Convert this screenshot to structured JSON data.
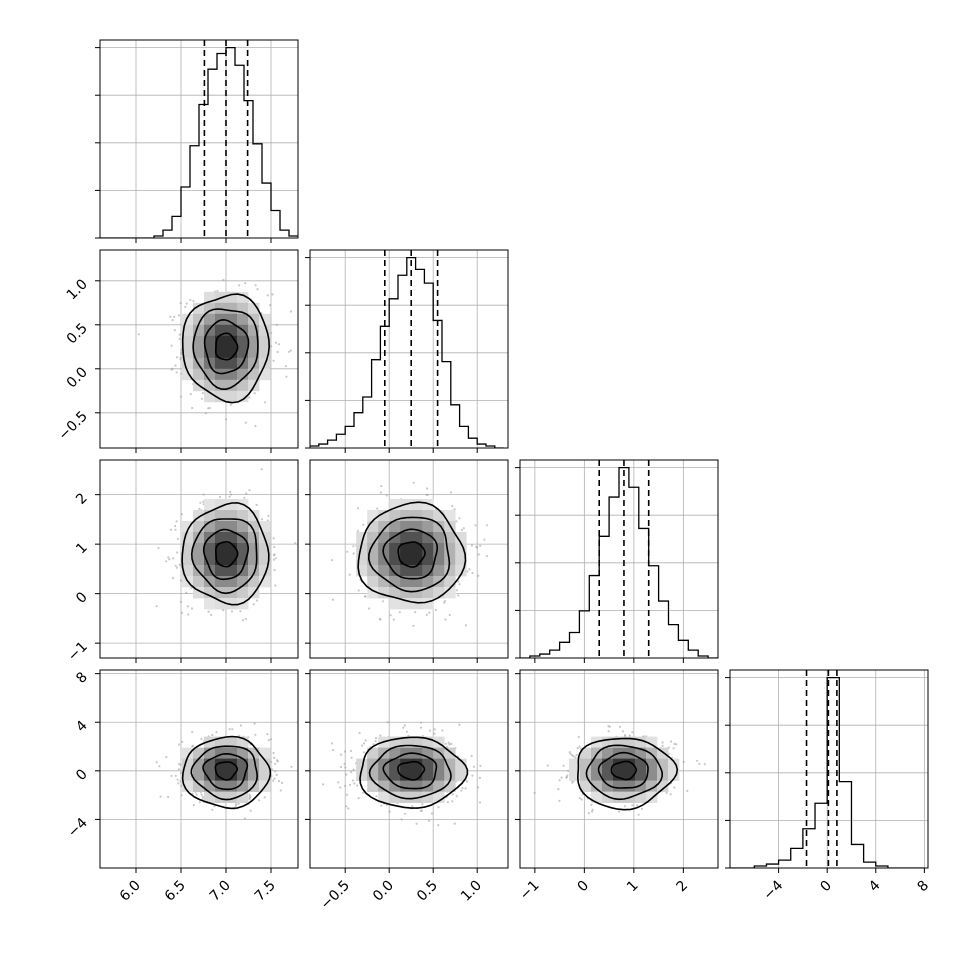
{
  "chart_data": {
    "type": "corner",
    "title": "",
    "parameters": [
      {
        "index": 0,
        "range": [
          5.6,
          7.8
        ],
        "ticks": [
          6.0,
          6.5,
          7.0,
          7.5
        ],
        "tick_labels": [
          "6.0",
          "6.5",
          "7.0",
          "7.5"
        ],
        "median": 7.0,
        "sigma": 0.24,
        "quantiles": [
          6.76,
          7.0,
          7.24
        ]
      },
      {
        "index": 1,
        "range": [
          -0.9,
          1.35
        ],
        "ticks": [
          -0.5,
          0.0,
          0.5,
          1.0
        ],
        "tick_labels": [
          "−0.5",
          "0.0",
          "0.5",
          "1.0"
        ],
        "median": 0.25,
        "sigma": 0.3,
        "quantiles": [
          -0.05,
          0.25,
          0.55
        ]
      },
      {
        "index": 2,
        "range": [
          -1.3,
          2.7
        ],
        "ticks": [
          -1,
          0,
          1,
          2
        ],
        "tick_labels": [
          "−1",
          "0",
          "1",
          "2"
        ],
        "median": 0.8,
        "sigma": 0.5,
        "quantiles": [
          0.3,
          0.8,
          1.3
        ]
      },
      {
        "index": 3,
        "range": [
          -8.0,
          8.3
        ],
        "ticks": [
          -4,
          0,
          4,
          8
        ],
        "tick_labels": [
          "−4",
          "0",
          "4",
          "8"
        ],
        "median": 0.1,
        "sigma": 1.3,
        "quantiles": [
          -1.7,
          0.1,
          0.8
        ]
      }
    ],
    "diagonal_histograms": [
      {
        "param": 0,
        "bin_edges": [
          5.6,
          5.7,
          5.8,
          5.9,
          6.0,
          6.1,
          6.2,
          6.3,
          6.4,
          6.5,
          6.6,
          6.7,
          6.8,
          6.9,
          7.0,
          7.1,
          7.2,
          7.3,
          7.4,
          7.5,
          7.6,
          7.7,
          7.8
        ],
        "counts": [
          0,
          0,
          0,
          0,
          0,
          0,
          1,
          4,
          11,
          26,
          47,
          68,
          86,
          94,
          97,
          88,
          70,
          48,
          28,
          14,
          4,
          1
        ]
      },
      {
        "param": 1,
        "bin_edges": [
          -0.9,
          -0.8,
          -0.7,
          -0.6,
          -0.5,
          -0.4,
          -0.3,
          -0.2,
          -0.1,
          0.0,
          0.1,
          0.2,
          0.3,
          0.4,
          0.5,
          0.6,
          0.7,
          0.8,
          0.9,
          1.0,
          1.1,
          1.2,
          1.3
        ],
        "counts": [
          1,
          2,
          4,
          7,
          11,
          18,
          26,
          45,
          62,
          76,
          88,
          97,
          91,
          84,
          65,
          44,
          22,
          11,
          5,
          2,
          1,
          0
        ]
      },
      {
        "param": 2,
        "bin_edges": [
          -1.3,
          -1.1,
          -0.9,
          -0.7,
          -0.5,
          -0.3,
          -0.1,
          0.1,
          0.3,
          0.5,
          0.7,
          0.9,
          1.1,
          1.3,
          1.5,
          1.7,
          1.9,
          2.1,
          2.3,
          2.5,
          2.7
        ],
        "counts": [
          0,
          1,
          2,
          4,
          8,
          13,
          24,
          42,
          62,
          82,
          97,
          87,
          66,
          47,
          29,
          17,
          9,
          4,
          1,
          0
        ]
      },
      {
        "param": 3,
        "bin_edges": [
          -8,
          -7,
          -6,
          -5,
          -4,
          -3,
          -2,
          -1,
          0,
          1,
          2,
          3,
          4,
          5,
          6,
          7,
          8
        ],
        "counts": [
          0,
          0,
          1,
          2,
          4,
          10,
          20,
          33,
          97,
          44,
          12,
          3,
          1,
          0,
          0,
          0
        ]
      }
    ],
    "contour_levels_sigma": [
      0.5,
      1.0,
      1.5,
      2.0
    ],
    "grid": true,
    "legend": "none"
  }
}
